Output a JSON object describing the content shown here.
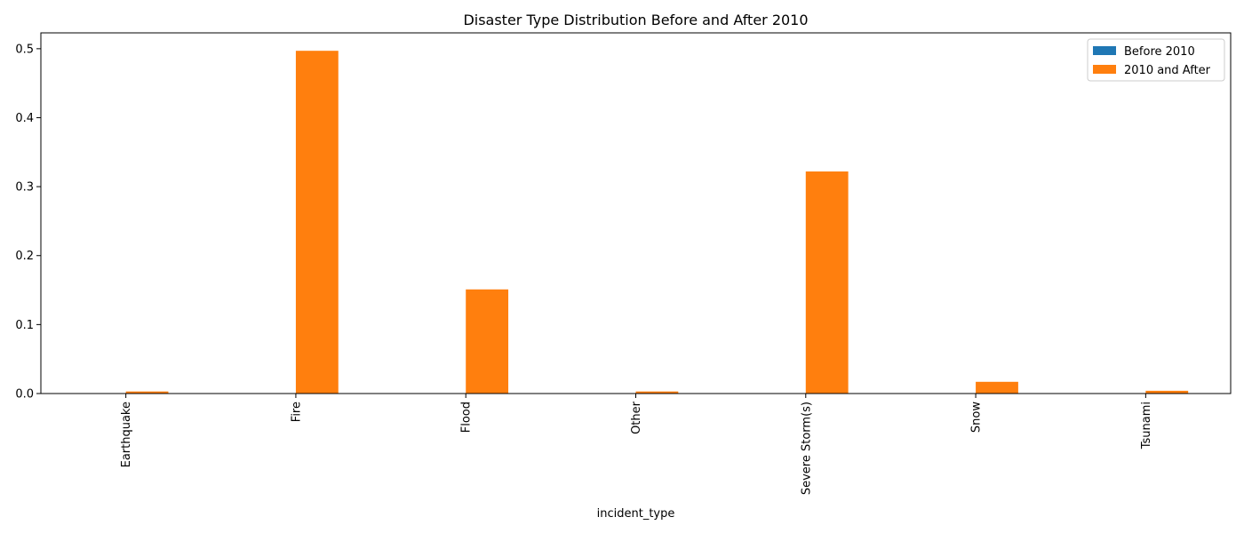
{
  "chart_data": {
    "type": "bar",
    "title": "Disaster Type Distribution Before and After 2010",
    "xlabel": "incident_type",
    "ylabel": "",
    "categories": [
      "Earthquake",
      "Fire",
      "Flood",
      "Other",
      "Severe Storm(s)",
      "Snow",
      "Tsunami"
    ],
    "series": [
      {
        "name": "Before 2010",
        "color": "#1f77b4",
        "values": [
          0,
          0,
          0,
          0,
          0,
          0,
          0
        ]
      },
      {
        "name": "2010 and After",
        "color": "#ff7f0e",
        "values": [
          0.003,
          0.497,
          0.151,
          0.003,
          0.322,
          0.017,
          0.004
        ]
      }
    ],
    "ylim": [
      0,
      0.523
    ],
    "yticks": [
      "0.0",
      "0.1",
      "0.2",
      "0.3",
      "0.4",
      "0.5"
    ],
    "legend_position": "top-right",
    "grid": false
  }
}
